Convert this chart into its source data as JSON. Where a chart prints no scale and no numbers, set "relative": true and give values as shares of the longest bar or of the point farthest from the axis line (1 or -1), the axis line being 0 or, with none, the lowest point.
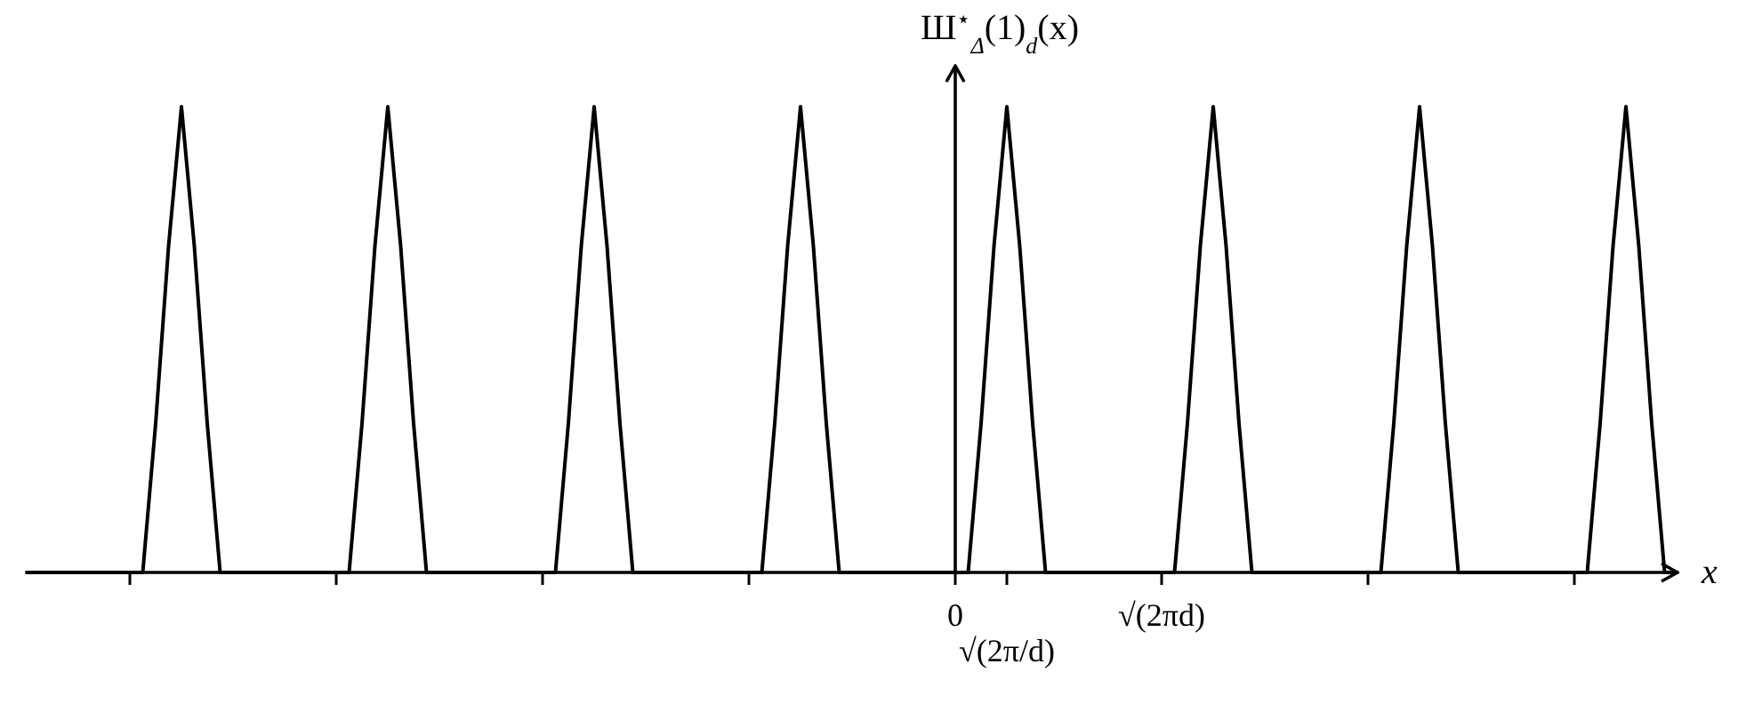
{
  "chart_data": {
    "type": "line",
    "relative": true,
    "ylabel": "Ш$^{⋆}$$_{Δ}$(1)$_{d}$(x)",
    "xlabel": "x",
    "categories": [
      null,
      null,
      null,
      null,
      null,
      null,
      null,
      null,
      null,
      null,
      null,
      null,
      null,
      null,
      null,
      null,
      null,
      null,
      null,
      null,
      null,
      null,
      null,
      null,
      null,
      null,
      null,
      null,
      null,
      null,
      null,
      null,
      null,
      null,
      null,
      null,
      null,
      null,
      null,
      null,
      null,
      null,
      null,
      null,
      null,
      null,
      null,
      null,
      null,
      null,
      null,
      null,
      null,
      null,
      null,
      null,
      null,
      null,
      null,
      null,
      null,
      null,
      null,
      null,
      null,
      null,
      null,
      null,
      null,
      null,
      null,
      null,
      "0",
      null,
      null,
      null,
      "√(2π/d)",
      null,
      null,
      null,
      null,
      null,
      null,
      null,
      null,
      null,
      null,
      null,
      "√(2πd)",
      null,
      null,
      null,
      null,
      null,
      null,
      null,
      null,
      null,
      null,
      null,
      null,
      null,
      null,
      null,
      null,
      null,
      null,
      null,
      null,
      null,
      null,
      null,
      null,
      null,
      null,
      null,
      null,
      null,
      null,
      null,
      null,
      null,
      null,
      null,
      null,
      null,
      null,
      null,
      null
    ],
    "series": [
      {
        "color": "#000000",
        "values": [
          0,
          0,
          0,
          0,
          0,
          0,
          0,
          0,
          0,
          0,
          0.32,
          0.7,
          1,
          0.7,
          0.32,
          0,
          0,
          0,
          0,
          0,
          0,
          0,
          0,
          0,
          0,
          0,
          0.32,
          0.7,
          1,
          0.7,
          0.32,
          0,
          0,
          0,
          0,
          0,
          0,
          0,
          0,
          0,
          0,
          0,
          0.32,
          0.7,
          1,
          0.7,
          0.32,
          0,
          0,
          0,
          0,
          0,
          0,
          0,
          0,
          0,
          0,
          0,
          0.32,
          0.7,
          1,
          0.7,
          0.32,
          0,
          0,
          0,
          0,
          0,
          0,
          0,
          0,
          0,
          0,
          0,
          0.32,
          0.7,
          1,
          0.7,
          0.32,
          0,
          0,
          0,
          0,
          0,
          0,
          0,
          0,
          0,
          0,
          0,
          0.32,
          0.7,
          1,
          0.7,
          0.32,
          0,
          0,
          0,
          0,
          0,
          0,
          0,
          0,
          0,
          0,
          0,
          0.32,
          0.7,
          1,
          0.7,
          0.32,
          0,
          0,
          0,
          0,
          0,
          0,
          0,
          0,
          0,
          0,
          0,
          0.32,
          0.7,
          1,
          0.7,
          0.32,
          0,
          0
        ]
      }
    ]
  }
}
